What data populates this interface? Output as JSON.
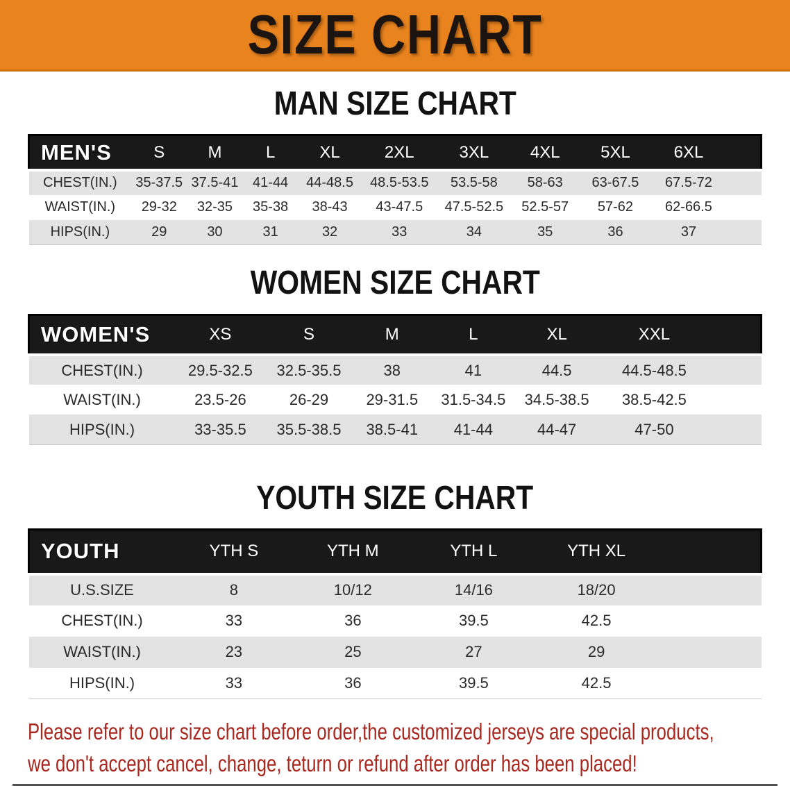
{
  "banner_title": "SIZE CHART",
  "colors": {
    "banner_bg": "#e8831e",
    "header_bar_bg": "#191919",
    "row_alt_bg": "#e3e3e3",
    "notice_red": "#a8281f"
  },
  "tables": {
    "men": {
      "heading": "MAN SIZE CHART",
      "label": "MEN'S",
      "sizes": [
        "S",
        "M",
        "L",
        "XL",
        "2XL",
        "3XL",
        "4XL",
        "5XL",
        "6XL"
      ],
      "rows": [
        {
          "label": "CHEST(IN.)",
          "values": [
            "35-37.5",
            "37.5-41",
            "41-44",
            "44-48.5",
            "48.5-53.5",
            "53.5-58",
            "58-63",
            "63-67.5",
            "67.5-72"
          ]
        },
        {
          "label": "WAIST(IN.)",
          "values": [
            "29-32",
            "32-35",
            "35-38",
            "38-43",
            "43-47.5",
            "47.5-52.5",
            "52.5-57",
            "57-62",
            "62-66.5"
          ]
        },
        {
          "label": "HIPS(IN.)",
          "values": [
            "29",
            "30",
            "31",
            "32",
            "33",
            "34",
            "35",
            "36",
            "37"
          ]
        }
      ]
    },
    "women": {
      "heading": "WOMEN SIZE CHART",
      "label": "WOMEN'S",
      "sizes": [
        "XS",
        "S",
        "M",
        "L",
        "XL",
        "XXL"
      ],
      "rows": [
        {
          "label": "CHEST(IN.)",
          "values": [
            "29.5-32.5",
            "32.5-35.5",
            "38",
            "41",
            "44.5",
            "44.5-48.5"
          ]
        },
        {
          "label": "WAIST(IN.)",
          "values": [
            "23.5-26",
            "26-29",
            "29-31.5",
            "31.5-34.5",
            "34.5-38.5",
            "38.5-42.5"
          ]
        },
        {
          "label": "HIPS(IN.)",
          "values": [
            "33-35.5",
            "35.5-38.5",
            "38.5-41",
            "41-44",
            "44-47",
            "47-50"
          ]
        }
      ]
    },
    "youth": {
      "heading": "YOUTH SIZE CHART",
      "label": "YOUTH",
      "sizes": [
        "YTH S",
        "YTH M",
        "YTH L",
        "YTH XL"
      ],
      "rows": [
        {
          "label": "U.S.SIZE",
          "values": [
            "8",
            "10/12",
            "14/16",
            "18/20"
          ]
        },
        {
          "label": "CHEST(IN.)",
          "values": [
            "33",
            "36",
            "39.5",
            "42.5"
          ]
        },
        {
          "label": "WAIST(IN.)",
          "values": [
            "23",
            "25",
            "27",
            "29"
          ]
        },
        {
          "label": "HIPS(IN.)",
          "values": [
            "33",
            "36",
            "39.5",
            "42.5"
          ]
        }
      ]
    }
  },
  "notice": {
    "line1": "Please refer to our size chart before order,the customized jerseys are special products,",
    "line2": "we don't accept cancel, change, teturn or refund after order has been placed!"
  }
}
